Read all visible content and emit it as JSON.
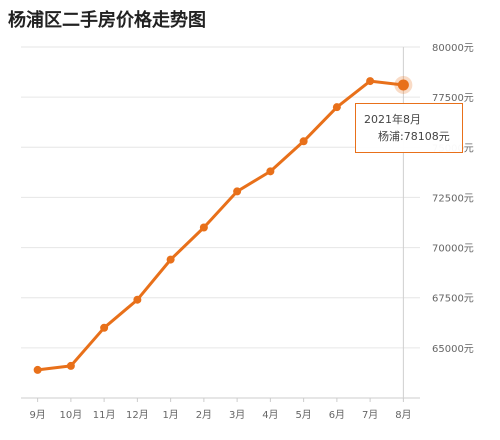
{
  "title": "杨浦区二手房价格走势图",
  "chart_data": {
    "type": "line",
    "title": "杨浦区二手房价格走势图",
    "categories": [
      "9月",
      "10月",
      "11月",
      "12月",
      "1月",
      "2月",
      "3月",
      "4月",
      "5月",
      "6月",
      "7月",
      "8月"
    ],
    "series": [
      {
        "values": [
          63900,
          64100,
          66000,
          67400,
          69400,
          71000,
          72800,
          73800,
          75300,
          77000,
          78300,
          78108
        ]
      }
    ],
    "y_ticks": [
      "65000元",
      "67500元",
      "70000元",
      "72500元",
      "75000元",
      "77500元",
      "80000元"
    ],
    "ylim": [
      62500,
      80000
    ],
    "grid": true,
    "highlight_index": 11,
    "color": "#e8701a"
  },
  "tooltip": {
    "date": "2021年8月",
    "value": "杨浦:78108元"
  }
}
